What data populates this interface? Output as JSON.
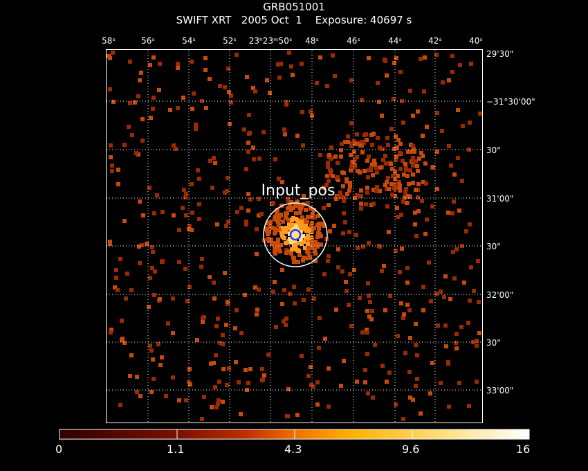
{
  "header": {
    "object": "GRB051001",
    "subtitle": "SWIFT XRT   2005 Oct  1    Exposure: 40697 s"
  },
  "axes": {
    "ra_labels": [
      "58ˢ",
      "56ˢ",
      "54ˢ",
      "52ˢ",
      "23ʰ23ᵐ50ˢ",
      "48ˢ",
      "46ˢ",
      "44ˢ",
      "42ˢ",
      "40ˢ"
    ],
    "dec_labels": [
      "29'30\"",
      "−31°30'00\"",
      "30\"",
      "31'00\"",
      "30\"",
      "32'00\"",
      "30\"",
      "33'00\""
    ]
  },
  "source_marker": {
    "label": "Input_pos"
  },
  "colorbar": {
    "tick_labels": [
      "0",
      "1.1",
      "4.3",
      "9.6",
      "16"
    ],
    "colors": [
      "#300000",
      "#7a1000",
      "#c03000",
      "#f07000",
      "#ffb000",
      "#ffe080",
      "#ffffff"
    ]
  },
  "colors": {
    "background": "#000000",
    "grid": "#ffffff",
    "event_dim": "#9a2a00",
    "event_mid": "#c84a0a",
    "event_bright": "#ff9a20",
    "source_core": "#ffe080",
    "source_ring": "#2a32ff"
  }
}
